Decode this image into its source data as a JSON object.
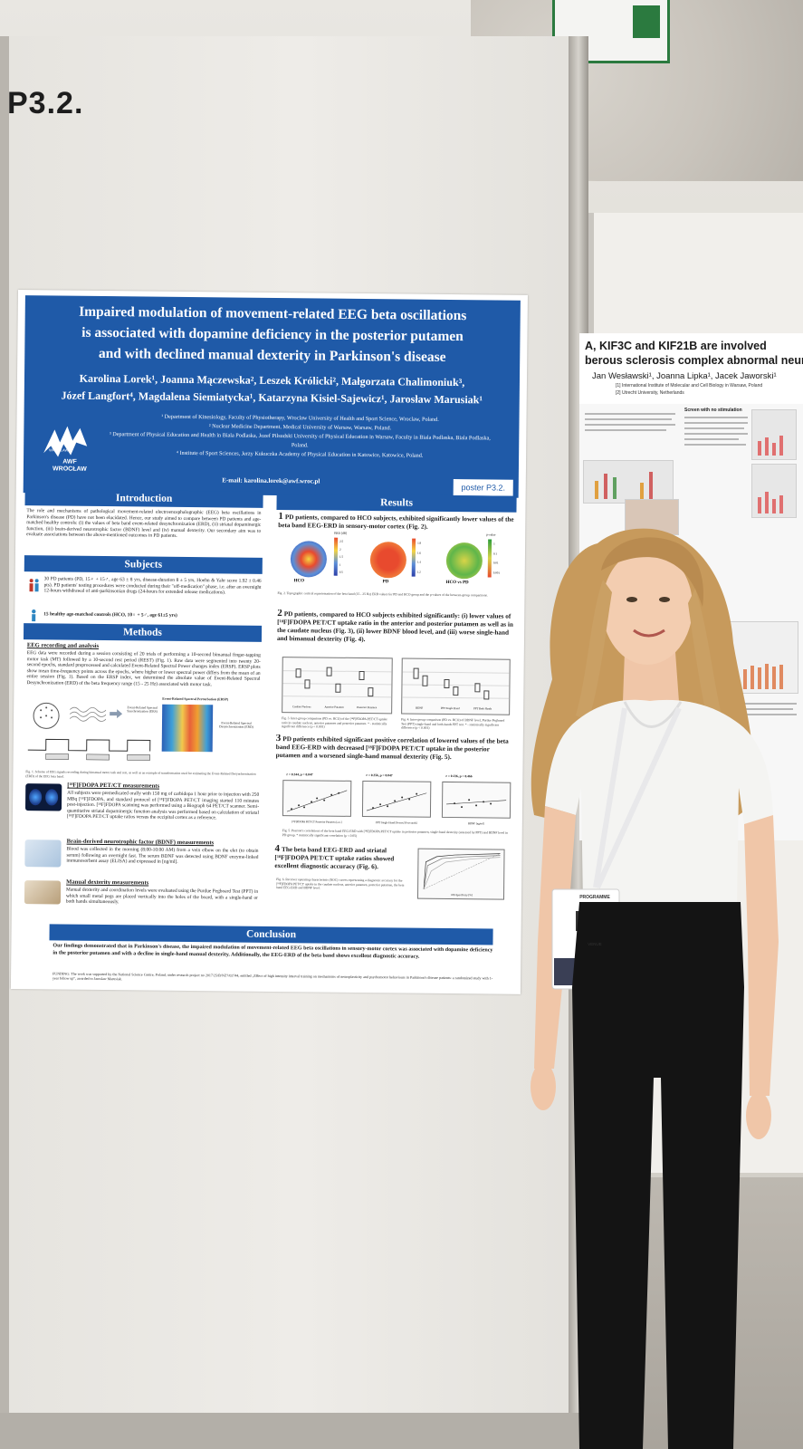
{
  "scene": {
    "board_code": "P3.2."
  },
  "poster": {
    "title_lines": [
      "Impaired modulation of movement-related EEG beta oscillations",
      "is associated with dopamine deficiency in the posterior putamen",
      "and with declined manual dexterity in Parkinson's disease"
    ],
    "authors_lines": [
      "Karolina Lorek¹, Joanna Mączewska², Leszek Królicki², Małgorzata Chalimoniuk³,",
      "Józef Langfort⁴, Magdalena Siemiatycka¹, Katarzyna Kisiel-Sajewicz¹, Jarosław Marusiak¹"
    ],
    "affiliations": [
      "¹ Department of Kinesiology, Faculty of Physiotherapy, Wroclaw University of Health and Sport Science, Wroclaw, Poland.",
      "² Nuclear Medicine Department, Medical University of Warsaw, Warsaw, Poland.",
      "³ Department of Physical Education and Health in Biala Podlaska, Jozef Pilsudski University of Physical Education in Warsaw, Faculty in Biala Podlaska, Biala Podlaska, Poland.",
      "⁴ Institute of Sport Sciences, Jerzy Kukuczka Academy of Physical Education in Katowice, Katowice, Poland."
    ],
    "email": "E-mail: karolina.lorek@awf.wroc.pl",
    "logo_text_top": "AWF",
    "logo_text_bottom": "WROCŁAW",
    "logo_small": "WROCŁAW",
    "poster_tag": "poster P3.2.",
    "sections": {
      "introduction": "Introduction",
      "subjects": "Subjects",
      "methods": "Methods",
      "results": "Results",
      "conclusion": "Conclusion"
    },
    "introduction_text": "The role and mechanisms of pathological movement-related electroencephalographic (EEG) beta oscillations in Parkinson's disease (PD) have not been elucidated. Hence, our study aimed to compare between PD patients and age-matched healthy controls: (i) the values of beta band event-related desynchronization (ERD), (ii) striatal dopaminergic function, (iii) brain-derived neurotrophic factor (BDNF) level and (iv) manual dexterity. Our secondary aim was to evaluate associations between the above-mentioned outcomes in PD patients.",
    "subjects_pd": "30 PD patients (PD, 15♀ + 15♂, age 63 ± 8 yrs, disease-duration 8 ± 5 yrs, Hoehn & Yahr score 1.92 ± 0.46 pts). PD patients' testing procedures were conducted during their \"off-medication\" phase, i.e. after an overnight 12-hours withdrawal of anti-parkinsonian drugs (24-hours for extended release medications).",
    "subjects_hco": "15 healthy age-matched controls (HCO, 10♀ + 5♂, age 61±5 yrs)",
    "methods": {
      "eeg_heading": "EEG recording and analysis",
      "eeg_text": "EEG data were recorded during a session consisting of 20 trials of performing a 10-second bimanual finger-tapping motor task (MT) followed by a 10-second rest period (REST) (Fig. 1). Raw data were segmented into twenty 20-second epochs, standard preprocessed and calculated Event-Related Spectral Power changes index (ERSP). ERSP plots show mean time-frequency points across the epochs, where higher or lower spectral power differs from the mean of an entire session (Fig. 1). Based on the ERSP index, we determined the absolute value of Event-Related Spectral Desynchronization (ERD) of the beta frequency range (15 - 25 Hz) associated with motor task.",
      "fig1_label_sync": "Event-Related Spectral Synchronization (ERS)",
      "fig1_label_desync": "Event-Related Spectral Desynchronization (ERD)",
      "fig1_title": "Event-Related Spectral Perturbation (ERSP)",
      "fig1_caption": "Fig. 1. Scheme of EEG signals recording during bimanual motor task and rest, as well as an example of transformation used for estimating the Event-Related Desynchronization (ERD) of the EEG beta band.",
      "pet_heading": "[¹⁸F]FDOPA PET/CT measurements",
      "pet_text": "All subjects were premedicated orally with 150 mg of carbidopa 1 hour prior to injection with 250 MBq [¹⁸F]FDOPA, and standard protocol of [¹⁸F]FDOPA PET/CT imaging started 110 minutes post-injection. [¹⁸F]FDOPA scanning was performed using a Biograph 64 PET/CT scanner. Semi-quantitative striatal dopaminergic function analysis was performed based on calculation of striatal [¹⁸F]FDOPA PET/CT uptake ratios versus the occipital cortex as a reference.",
      "bdnf_heading": "Brain-derived neurotrophic factor (BDNF) measurements",
      "bdnf_text": "Blood was collected in the morning (8:00-10:00 AM) from a vein elbow on the elet (to obtain serum) following an overnight fast. The serum BDNF was detected using BDNF enzyme-linked immunosorbent assay (ELISA) and expressed in [ng/ml].",
      "dex_heading": "Manual dexterity measurements",
      "dex_text": "Manual dexterity and coordination levels were evaluated using the Purdue Pegboard Test (PPT) in which small metal pegs are placed vertically into the holes of the board, with a single-hand or both hands simultaneously."
    },
    "results": {
      "r1_num": "1",
      "r1_text": "PD patients, compared to HCO subjects, exhibited significantly lower values of the beta band EEG-ERD in sensory-motor cortex (Fig. 2).",
      "fig2_groups": [
        "HCO",
        "PD",
        "HCO vs PD"
      ],
      "fig2_scale1_title": "ERD [dB]",
      "fig2_scale1_ticks": [
        "2.5",
        "2",
        "1.5",
        "1",
        "0.5"
      ],
      "fig2_scale2_ticks": [
        "1.8",
        "1.6",
        "1.4",
        "1.2"
      ],
      "fig2_scale3_title": "p-value",
      "fig2_scale3_ticks": [
        "1",
        "0.1",
        "0.01",
        "0.001"
      ],
      "fig2_caption": "Fig. 2. Topographic cortical representation of the beta band (15 - 25 Hz) ERD values for PD and HCO group and the p-values of the between-group comparisons.",
      "r2_num": "2",
      "r2_text": "PD patients, compared to HCO subjects exhibited significantly: (i) lower values of [¹⁸F]FDOPA PET/CT uptake ratio in the anterior and posterior putamen as well as in the caudate nucleus (Fig. 3), (ii) lower BDNF blood level, and (iii) worse single-hand and bimanual dexterity (Fig. 4).",
      "fig3_categories": [
        "Caudate Nucleus",
        "Anterior Putamen",
        "Posterior Putamen"
      ],
      "fig4_categories": [
        "BDNF",
        "PPT Single Hand",
        "PPT Both Hands"
      ],
      "fig3_caption": "Fig. 3. Inter-group comparison (PD vs. HCO) of the [¹⁸F]FDOPA PET/CT uptake ratio in caudate nucleus, anterior putamen and posterior putamen. * - statistically significant difference (p < 0.001)",
      "fig4_caption": "Fig. 4. Inter-group comparison (PD vs. HCO) of BDNF level, Purdue Pegboard Test (PPT) single-hand and both-hands PPT test. * - statistically significant difference (p < 0.001)",
      "r3_num": "3",
      "r3_text": "PD patients exhibited significant positive correlation of lowered values of the beta band EEG-ERD with decreased [¹⁸F]FDOPA PET/CT uptake in the posterior putamen and a worsened single-hand manual dexterity (Fig. 5).",
      "fig5_stats": [
        "r = 0.344, p = 0.047",
        "r = 0.356, p = 0.047",
        "r = 0.136, p = 0.466"
      ],
      "fig5_xlabels": [
        "[¹⁸F]FDOPA PET/CT Posterior Putamen [a.u.]",
        "PPT Single Hand [Scores/30 seconds]",
        "BDNF [ng/ml]"
      ],
      "fig5_caption": "Fig. 5. Pearson's correlations of the beta band EEG-ERD with [¹⁸F]FDOPA PET/CT uptake in posterior putamen, single-hand dexterity (assessed by PPT) and BDNF level in PD group. * statistically significant correlation (p < 0.05)",
      "r4_num": "4",
      "r4_text": "The beta band EEG-ERD and striatal [¹⁸F]FDOPA PET/CT uptake ratios showed excellent diagnostic accuracy (Fig. 6).",
      "fig6_caption": "Fig. 6. Receiver operating characteristic (ROC) curves representing a diagnostic accuracy for the [¹⁸F]FDOPA PET/CT uptake in the caudate nucleus, anterior putamen, posterior putamen, the beta band EEG-ERD and BDNF level.",
      "fig6_xlabel": "100-Specificity [%]"
    },
    "conclusion_text": "Our findings demonstrated that in Parkinson's disease, the impaired modulation of movement-related EEG beta oscillations in sensory-motor cortex was associated with dopamine deficiency in the posterior putamen and with a decline in single-hand manual dexterity. Additionally, the EEG-ERD of the beta band shows excellent diagnostic accuracy.",
    "funding_text": "FUNDING: The work was supported by the National Science Centre, Poland, under research project no 2017/25/B/NZ7/02744, entitled „Effect of high intensity interval training on mechanisms of neuroplasticity and psychomotor behaviours in Parkinson's disease patients: a randomized study with 1-year follow up\", awarded to Jaroslaw Marusiak."
  },
  "right_poster": {
    "title_line1": "A, KIF3C and KIF21B are involved",
    "title_line2": "berous sclerosis complex abnormal neuronal",
    "authors": "Jan Wesławski¹, Joanna Lipka¹, Jacek Jaworski¹",
    "affiliation1": "[1] International Institute of Molecular and Cell Biology in Warsaw, Poland",
    "affiliation2": "[2] Utrecht University, Netherlands",
    "heading": "Screen with no stimulation"
  },
  "badge": {
    "label": "PROGRAMME",
    "venue": "VENUE"
  },
  "colors": {
    "poster_blue": "#1f5aa8",
    "shirt": "#f4f4f2",
    "trousers": "#141414",
    "hair": "#c79a5c"
  }
}
